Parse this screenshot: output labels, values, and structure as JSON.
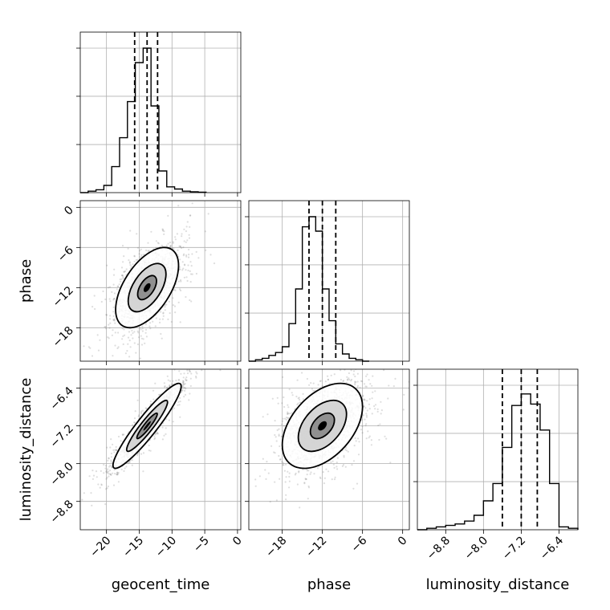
{
  "chart_data": {
    "type": "corner",
    "parameters": [
      {
        "name": "geocent_time",
        "range": [
          -24,
          0.5
        ],
        "ticks": [
          -20,
          -15,
          -10,
          -5,
          0
        ],
        "tick_labels": [
          "−20",
          "−15",
          "−10",
          "−5",
          "0"
        ],
        "quantiles": [
          -15.7,
          -13.8,
          -12.2
        ],
        "hist_edges": [
          -24,
          -22.8,
          -21.6,
          -20.4,
          -19.2,
          -18,
          -16.8,
          -15.6,
          -14.4,
          -13.2,
          -12,
          -10.8,
          -9.6,
          -8.4,
          -7.2,
          -6,
          -4.8
        ],
        "hist_values": [
          0,
          0.01,
          0.02,
          0.05,
          0.18,
          0.38,
          0.63,
          0.9,
          1.0,
          0.6,
          0.15,
          0.04,
          0.025,
          0.01,
          0.006,
          0.003,
          0
        ]
      },
      {
        "name": "phase",
        "range": [
          -23,
          1
        ],
        "ticks": [
          -18,
          -12,
          -6,
          0
        ],
        "tick_labels": [
          "−18",
          "−12",
          "−6",
          "0"
        ],
        "quantiles": [
          -14.0,
          -12.0,
          -10.0
        ],
        "hist_edges": [
          -23,
          -22,
          -21,
          -20,
          -19,
          -18,
          -17,
          -16,
          -15,
          -14,
          -13,
          -12,
          -11,
          -10,
          -9,
          -8,
          -7,
          -6,
          -5
        ],
        "hist_values": [
          0,
          0.01,
          0.02,
          0.04,
          0.06,
          0.1,
          0.26,
          0.5,
          0.93,
          1.0,
          0.9,
          0.5,
          0.28,
          0.12,
          0.05,
          0.02,
          0.01,
          0
        ],
        "y_ticks": [
          -18,
          -12,
          -6,
          0
        ],
        "y_tick_labels": [
          "−18",
          "−12",
          "−6",
          "0"
        ],
        "y_range": [
          -23,
          1
        ]
      },
      {
        "name": "luminosity_distance",
        "range": [
          -9.4,
          -6.0
        ],
        "ticks": [
          -8.8,
          -8.0,
          -7.2,
          -6.4
        ],
        "tick_labels": [
          "−8.8",
          "−8.0",
          "−7.2",
          "−6.4"
        ],
        "quantiles": [
          -7.6,
          -7.2,
          -6.86
        ],
        "hist_edges": [
          -9.4,
          -9.2,
          -9.0,
          -8.8,
          -8.6,
          -8.4,
          -8.2,
          -8.0,
          -7.8,
          -7.6,
          -7.4,
          -7.2,
          -7.0,
          -6.8,
          -6.6,
          -6.4,
          -6.2,
          -6.0
        ],
        "hist_values": [
          0,
          0.01,
          0.02,
          0.03,
          0.04,
          0.06,
          0.1,
          0.2,
          0.32,
          0.57,
          0.86,
          0.94,
          0.87,
          0.69,
          0.32,
          0.02,
          0.01,
          0
        ]
      }
    ],
    "pairs": [
      {
        "x": 0,
        "y": 1,
        "mode": [
          -13.8,
          -12.0
        ],
        "sigma": [
          2.4,
          3.0
        ],
        "rho": 0.55,
        "n_points": 1600
      },
      {
        "x": 0,
        "y": 2,
        "mode": [
          -13.8,
          -7.2
        ],
        "sigma": [
          2.6,
          0.45
        ],
        "rho": 0.93,
        "n_points": 1400
      },
      {
        "x": 1,
        "y": 2,
        "mode": [
          -12.0,
          -7.2
        ],
        "sigma": [
          3.0,
          0.45
        ],
        "rho": 0.45,
        "n_points": 1600
      }
    ],
    "grid": true,
    "colors": {
      "line": "#000000",
      "grid": "#b0b0b0",
      "scatter": "#6b6b6b"
    }
  }
}
